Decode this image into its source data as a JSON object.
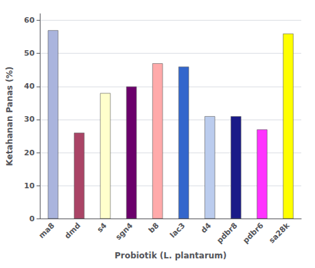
{
  "chart_data": {
    "type": "bar",
    "categories": [
      "ma8",
      "dmd",
      "s4",
      "sgn4",
      "b8",
      "lac3",
      "d4",
      "pdbr8",
      "pdbr6",
      "sa28k"
    ],
    "values": [
      57,
      26,
      38,
      40,
      47,
      46,
      31,
      31,
      27,
      56
    ],
    "colors": [
      "#aab4dd",
      "#aa4466",
      "#ffffcc",
      "#6b006b",
      "#ffaaaa",
      "#3366cc",
      "#bbccee",
      "#1a1a88",
      "#ff33ff",
      "#ffff00"
    ],
    "xlabel": "Probiotik (L. plantarum)",
    "ylabel": "Ketahanan Panas (%)",
    "ylim": [
      0,
      62
    ],
    "yticks": [
      0,
      10,
      20,
      30,
      40,
      50,
      60
    ],
    "grid": true
  }
}
